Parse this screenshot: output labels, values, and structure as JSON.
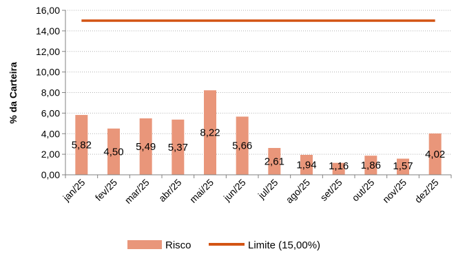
{
  "chart_data": {
    "type": "bar",
    "ylabel": "% da Carteira",
    "ylim": [
      0,
      16
    ],
    "yticks": [
      "0,00",
      "2,00",
      "4,00",
      "6,00",
      "8,00",
      "10,00",
      "12,00",
      "14,00",
      "16,00"
    ],
    "grid": true,
    "legend_position": "bottom",
    "categories": [
      "jan/25",
      "fev/25",
      "mar/25",
      "abr/25",
      "mai/25",
      "jun/25",
      "jul/25",
      "ago/25",
      "set/25",
      "out/25",
      "nov/25",
      "dez/25"
    ],
    "series": [
      {
        "name": "Risco",
        "type": "bar",
        "color": "#E9967A",
        "values": [
          5.82,
          4.5,
          5.49,
          5.37,
          8.22,
          5.66,
          2.61,
          1.94,
          1.16,
          1.86,
          1.57,
          4.02
        ],
        "labels": [
          "5,82",
          "4,50",
          "5,49",
          "5,37",
          "8,22",
          "5,66",
          "2,61",
          "1,94",
          "1,16",
          "1,86",
          "1,57",
          "4,02"
        ]
      },
      {
        "name": "Limite (15,00%)",
        "type": "line",
        "color": "#D35414",
        "values": [
          15,
          15,
          15,
          15,
          15,
          15,
          15,
          15,
          15,
          15,
          15,
          15
        ]
      }
    ]
  }
}
